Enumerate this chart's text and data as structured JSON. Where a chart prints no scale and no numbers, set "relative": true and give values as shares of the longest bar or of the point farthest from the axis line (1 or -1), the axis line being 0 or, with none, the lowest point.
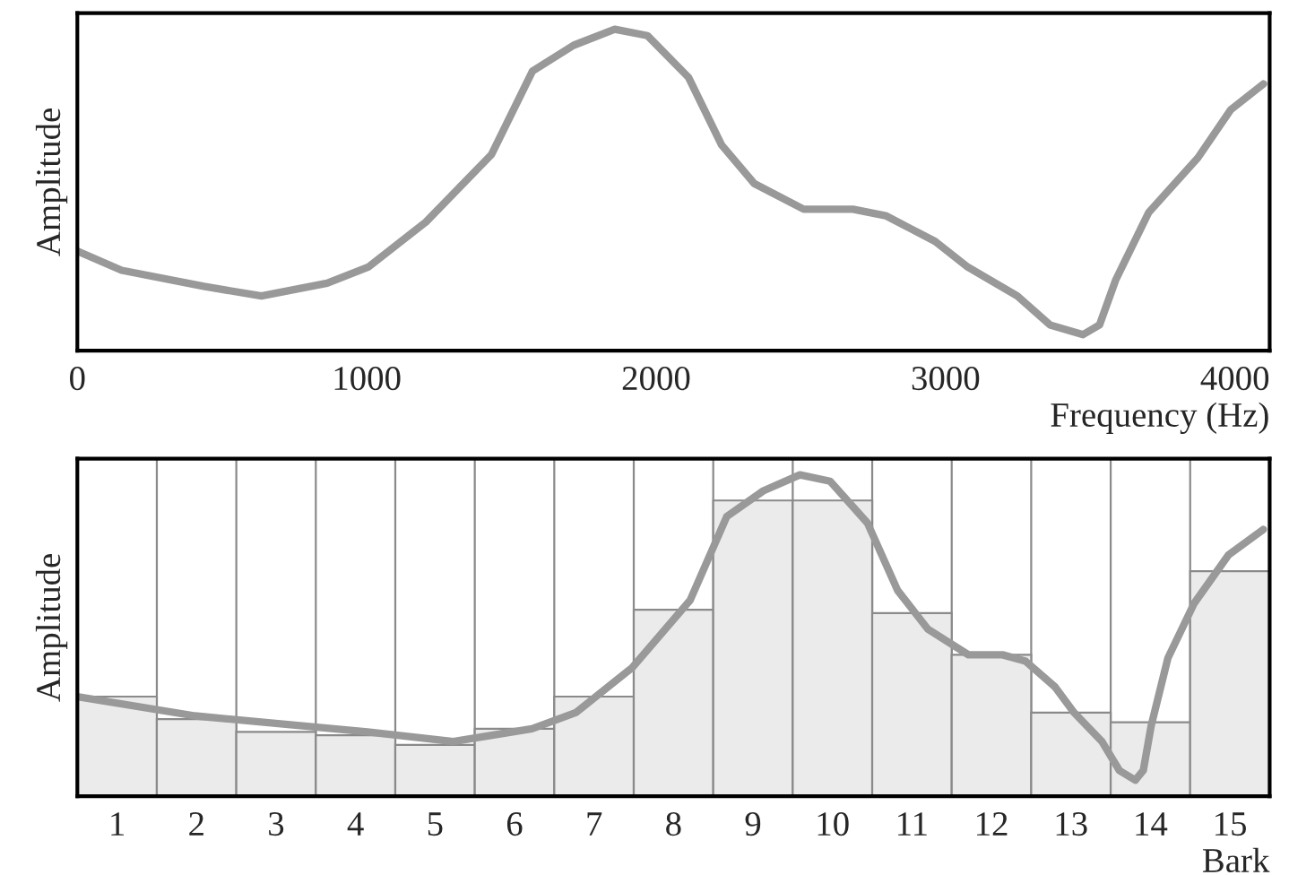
{
  "chart_data": [
    {
      "type": "line",
      "xlabel": "Frequency (Hz)",
      "ylabel": "Amplitude",
      "relative": true,
      "xlim": [
        0,
        4120
      ],
      "xticks": [
        0,
        1000,
        2000,
        3000,
        4000
      ],
      "grid": false,
      "legend": false,
      "series": [
        {
          "color": "#999999",
          "x": [
            0,
            153,
            437,
            636,
            863,
            1005,
            1204,
            1431,
            1573,
            1715,
            1857,
            1970,
            2112,
            2226,
            2339,
            2510,
            2680,
            2793,
            2964,
            3077,
            3248,
            3361,
            3475,
            3532,
            3588,
            3702,
            3872,
            3986,
            4099
          ],
          "values": [
            0.31,
            0.25,
            0.2,
            0.17,
            0.21,
            0.26,
            0.4,
            0.61,
            0.87,
            0.95,
            1.0,
            0.98,
            0.85,
            0.64,
            0.52,
            0.44,
            0.44,
            0.42,
            0.34,
            0.26,
            0.17,
            0.08,
            0.05,
            0.08,
            0.22,
            0.43,
            0.6,
            0.75,
            0.83
          ]
        }
      ]
    },
    {
      "type": "histogram",
      "xlabel": "Bark",
      "ylabel": "Amplitude",
      "relative": true,
      "xlim": [
        0.5,
        15.5
      ],
      "grid": false,
      "legend": false,
      "color": "#ebebeb",
      "xticks": [
        1,
        2,
        3,
        4,
        5,
        6,
        7,
        8,
        9,
        10,
        11,
        12,
        13,
        14,
        15
      ],
      "bins": [
        0.5,
        1.5,
        2.5,
        3.5,
        4.5,
        5.5,
        6.5,
        7.5,
        8.5,
        9.5,
        10.5,
        11.5,
        12.5,
        13.5,
        14.5,
        15.5
      ],
      "values": [
        0.31,
        0.24,
        0.2,
        0.19,
        0.16,
        0.21,
        0.31,
        0.58,
        0.92,
        0.92,
        0.57,
        0.44,
        0.26,
        0.23,
        0.7
      ],
      "series": [
        {
          "type": "line",
          "color": "#999999",
          "x": [
            0.5,
            1.98,
            4.15,
            5.23,
            6.22,
            6.77,
            7.48,
            8.21,
            8.67,
            9.13,
            9.59,
            9.97,
            10.44,
            10.82,
            11.2,
            11.71,
            12.14,
            12.43,
            12.8,
            13.04,
            13.39,
            13.61,
            13.81,
            13.91,
            14.01,
            14.22,
            14.55,
            14.98,
            15.42
          ],
          "values": [
            0.31,
            0.25,
            0.2,
            0.17,
            0.21,
            0.26,
            0.4,
            0.61,
            0.87,
            0.95,
            1.0,
            0.98,
            0.85,
            0.64,
            0.52,
            0.44,
            0.44,
            0.42,
            0.34,
            0.26,
            0.17,
            0.08,
            0.05,
            0.08,
            0.22,
            0.43,
            0.6,
            0.75,
            0.83
          ]
        }
      ]
    }
  ]
}
